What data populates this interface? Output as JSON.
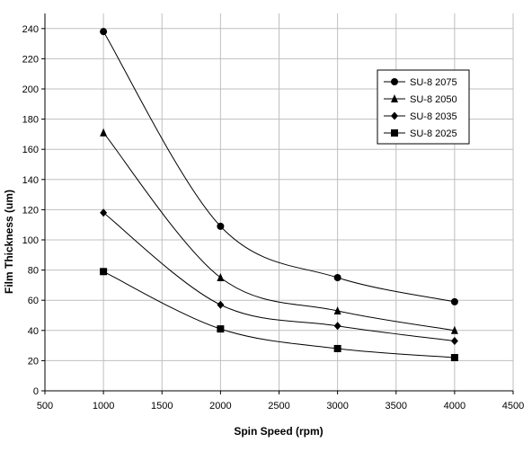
{
  "chart_data": {
    "type": "line",
    "title": "",
    "xlabel": "Spin Speed (rpm)",
    "ylabel": "Film Thickness (um)",
    "xlim": [
      500,
      4500
    ],
    "ylim": [
      0,
      250
    ],
    "xticks": [
      500,
      1000,
      1500,
      2000,
      2500,
      3000,
      3500,
      4000,
      4500
    ],
    "yticks": [
      0,
      20,
      40,
      60,
      80,
      100,
      120,
      140,
      160,
      180,
      200,
      220,
      240
    ],
    "x_tick_labels": [
      "500",
      "1000",
      "1500",
      "2000",
      "2500",
      "3000",
      "3500",
      "4000",
      "4500"
    ],
    "y_tick_labels": [
      "0",
      "20",
      "40",
      "60",
      "80",
      "100",
      "120",
      "140",
      "160",
      "180",
      "200",
      "220",
      "240"
    ],
    "grid": true,
    "legend_position": "top-right",
    "x": [
      1000,
      2000,
      3000,
      4000
    ],
    "series": [
      {
        "name": "SU-8 2075",
        "marker": "circle",
        "values": [
          238,
          109,
          75,
          59
        ]
      },
      {
        "name": "SU-8 2050",
        "marker": "triangle",
        "values": [
          171,
          75,
          53,
          40
        ]
      },
      {
        "name": "SU-8 2035",
        "marker": "diamond",
        "values": [
          118,
          57,
          43,
          33
        ]
      },
      {
        "name": "SU-8 2025",
        "marker": "square",
        "values": [
          79,
          41,
          28,
          22
        ]
      }
    ],
    "colors": {
      "line": "#000000",
      "grid": "#bfbfbf",
      "axis": "#000000"
    }
  }
}
